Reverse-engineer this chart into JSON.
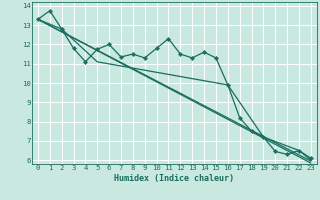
{
  "background_color": "#c8e8e0",
  "grid_color": "#ffffff",
  "line_color": "#1a6e5e",
  "xlabel": "Humidex (Indice chaleur)",
  "xlim": [
    -0.5,
    23.5
  ],
  "ylim": [
    5.8,
    14.2
  ],
  "yticks": [
    6,
    7,
    8,
    9,
    10,
    11,
    12,
    13,
    14
  ],
  "xticks": [
    0,
    1,
    2,
    3,
    4,
    5,
    6,
    7,
    8,
    9,
    10,
    11,
    12,
    13,
    14,
    15,
    16,
    17,
    18,
    19,
    20,
    21,
    22,
    23
  ],
  "line1_x": [
    0,
    1,
    2,
    3,
    4,
    5,
    6,
    7,
    8,
    9,
    10,
    11,
    12,
    13,
    14,
    15,
    16,
    17,
    18,
    19,
    20,
    21,
    22,
    23
  ],
  "line1_y": [
    13.3,
    13.75,
    12.8,
    11.8,
    11.1,
    11.75,
    12.0,
    11.35,
    11.5,
    11.3,
    11.8,
    12.3,
    11.5,
    11.3,
    11.6,
    11.3,
    9.9,
    8.2,
    7.5,
    7.2,
    6.45,
    6.3,
    6.5,
    6.1
  ],
  "line2_x": [
    0,
    2,
    5,
    16,
    19,
    22,
    23
  ],
  "line2_y": [
    13.3,
    12.8,
    11.1,
    9.9,
    7.2,
    6.5,
    6.0
  ],
  "line3_x": [
    0,
    23
  ],
  "line3_y": [
    13.3,
    5.95
  ],
  "line4_x": [
    0,
    23
  ],
  "line4_y": [
    13.3,
    5.85
  ],
  "tick_fontsize": 5.2,
  "xlabel_fontsize": 6.0
}
